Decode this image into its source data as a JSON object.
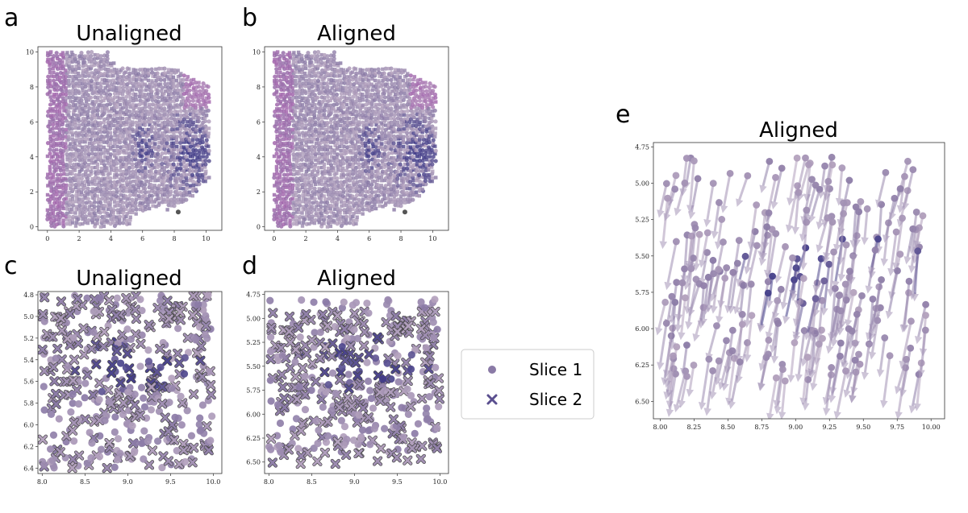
{
  "colors": {
    "light": "#b4a2be",
    "mid": "#8a7aa6",
    "dark": "#3f3a87",
    "magenta": "#a468ae",
    "highlight_box": "#d62020",
    "frame": "#333333"
  },
  "legend": {
    "items": [
      {
        "label": "Slice 1",
        "marker": "circle",
        "color": "#8a7aa6"
      },
      {
        "label": "Slice 2",
        "marker": "x",
        "color": "#5a4f8f"
      }
    ]
  },
  "chart_data": [
    {
      "panel": "a",
      "title": "Unaligned",
      "type": "scatter",
      "xticks": [
        "0",
        "2",
        "4",
        "6",
        "8",
        "10"
      ],
      "yticks": [
        "0",
        "2",
        "4",
        "6",
        "8",
        "10"
      ],
      "xlim": [
        -0.6,
        11.0
      ],
      "ylim": [
        10.3,
        -0.2
      ],
      "highlight_box": {
        "x": [
          8.0,
          10.5
        ],
        "y": [
          4.8,
          6.4
        ]
      }
    },
    {
      "panel": "b",
      "title": "Aligned",
      "type": "scatter",
      "xticks": [
        "0",
        "2",
        "4",
        "6",
        "8",
        "10"
      ],
      "yticks": [
        "0",
        "2",
        "4",
        "6",
        "8",
        "10"
      ],
      "xlim": [
        -0.6,
        11.0
      ],
      "ylim": [
        10.3,
        -0.2
      ],
      "highlight_box": {
        "x": [
          8.0,
          10.5
        ],
        "y": [
          4.8,
          6.4
        ]
      }
    },
    {
      "panel": "c",
      "title": "Unaligned",
      "type": "scatter",
      "xticks": [
        "8.0",
        "8.5",
        "9.0",
        "9.5",
        "10.0"
      ],
      "yticks": [
        "4.8",
        "5.0",
        "5.2",
        "5.4",
        "5.6",
        "5.8",
        "6.0",
        "6.2",
        "6.4"
      ],
      "xlim": [
        7.95,
        10.1
      ],
      "ylim": [
        4.77,
        6.45
      ]
    },
    {
      "panel": "d",
      "title": "Aligned",
      "type": "scatter",
      "xticks": [
        "8.0",
        "8.5",
        "9.0",
        "9.5",
        "10.0"
      ],
      "yticks": [
        "4.75",
        "5.00",
        "5.25",
        "5.50",
        "5.75",
        "6.00",
        "6.25",
        "6.50"
      ],
      "xlim": [
        7.95,
        10.1
      ],
      "ylim": [
        4.72,
        6.62
      ]
    },
    {
      "panel": "e",
      "title": "Aligned",
      "type": "scatter",
      "xticks": [
        "8.00",
        "8.25",
        "8.50",
        "8.75",
        "9.00",
        "9.25",
        "9.50",
        "9.75",
        "10.00"
      ],
      "yticks": [
        "4.75",
        "5.00",
        "5.25",
        "5.50",
        "5.75",
        "6.00",
        "6.25",
        "6.50"
      ],
      "xlim": [
        7.95,
        10.1
      ],
      "ylim": [
        4.72,
        6.62
      ]
    }
  ]
}
